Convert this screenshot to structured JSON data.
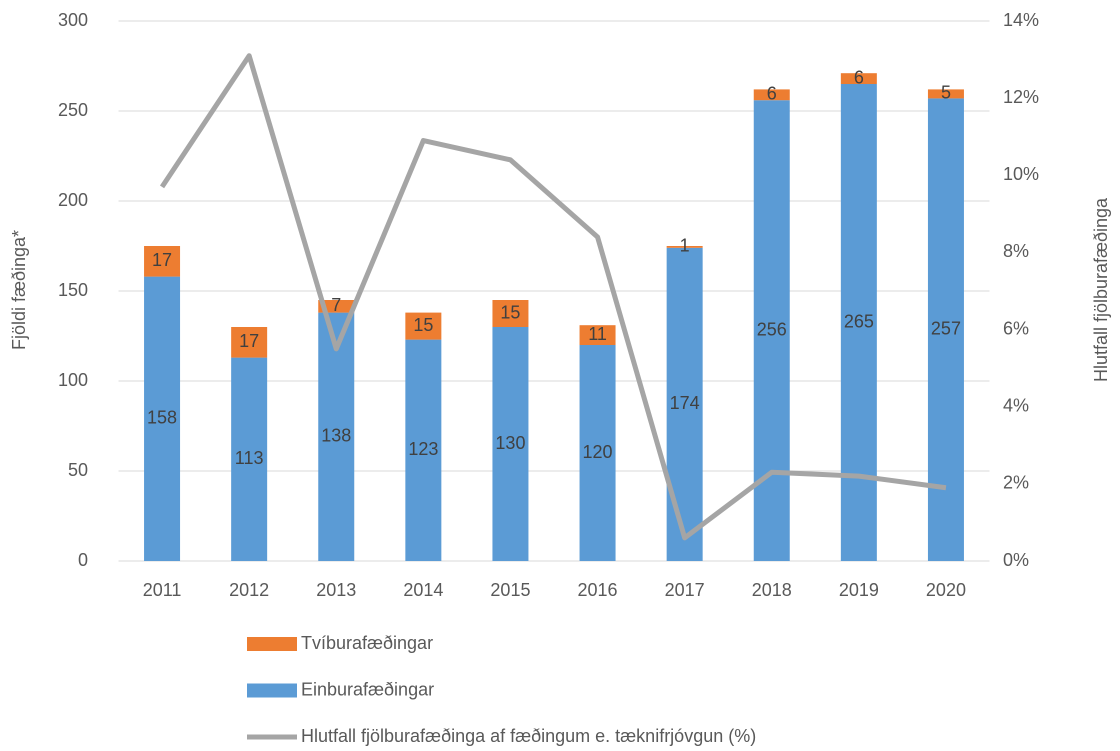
{
  "chart_data": {
    "type": "bar",
    "stacked": true,
    "ylabel": "Fjöldi fæðinga*",
    "y2label": "Hlutfall fjölburafæðinga",
    "categories": [
      "2011",
      "2012",
      "2013",
      "2014",
      "2015",
      "2016",
      "2017",
      "2018",
      "2019",
      "2020"
    ],
    "series": [
      {
        "name": "Tvíburafæðingar",
        "type": "bar",
        "color": "#ed7d31",
        "values": [
          17,
          17,
          7,
          15,
          15,
          11,
          1,
          6,
          6,
          5
        ]
      },
      {
        "name": "Einburafæðingar",
        "type": "bar",
        "color": "#5b9bd5",
        "values": [
          158,
          113,
          138,
          123,
          130,
          120,
          174,
          256,
          265,
          257
        ]
      },
      {
        "name": "Hlutfall fjölburafæðinga af fæðingum e. tæknifrjóvgun (%)",
        "type": "line",
        "axis": "y2",
        "color": "#a5a5a5",
        "values": [
          9.7,
          13.1,
          5.5,
          10.9,
          10.4,
          8.4,
          0.6,
          2.3,
          2.2,
          1.9
        ]
      }
    ],
    "ylim": [
      0,
      300
    ],
    "yticks": [
      0,
      50,
      100,
      150,
      200,
      250,
      300
    ],
    "y2lim": [
      0,
      14
    ],
    "y2ticks": [
      {
        "value": 0,
        "label": "0%"
      },
      {
        "value": 2,
        "label": "2%"
      },
      {
        "value": 4,
        "label": "4%"
      },
      {
        "value": 6,
        "label": "6%"
      },
      {
        "value": 8,
        "label": "8%"
      },
      {
        "value": 10,
        "label": "10%"
      },
      {
        "value": 12,
        "label": "12%"
      },
      {
        "value": 14,
        "label": "14%"
      }
    ],
    "grid": true,
    "legend": "bottom"
  }
}
